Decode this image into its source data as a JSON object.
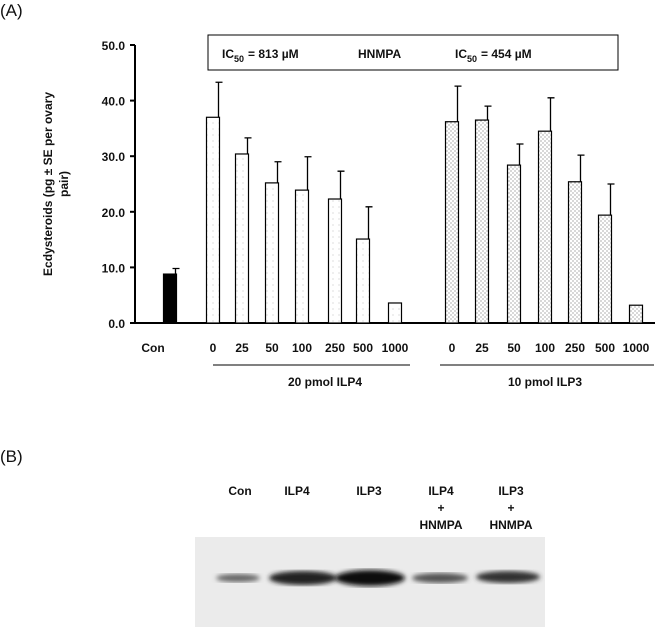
{
  "panel_labels": [
    "(A)",
    "(B)"
  ],
  "chart_data": {
    "type": "bar",
    "y_label": "Ecdysteroids (pg ± SE per ovary pair)",
    "categories": [
      "Con",
      "0",
      "25",
      "50",
      "100",
      "250",
      "500",
      "1000",
      "0",
      "25",
      "50",
      "100",
      "250",
      "500",
      "1000"
    ],
    "values": [
      8.8,
      37.0,
      30.4,
      25.2,
      23.9,
      22.3,
      15.1,
      3.6,
      36.2,
      36.5,
      28.4,
      34.5,
      25.4,
      19.4,
      3.2
    ],
    "errors": [
      1.0,
      6.3,
      2.9,
      3.8,
      6.0,
      5.0,
      5.8,
      null,
      6.4,
      2.5,
      3.8,
      6.0,
      4.8,
      5.6,
      null
    ],
    "group_labels": [
      "20 pmol ILP4",
      "10 pmol ILP3"
    ],
    "ylim": [
      0,
      50
    ],
    "yticks": [
      {
        "value": 0,
        "label": "0.0"
      },
      {
        "value": 10,
        "label": "10.0"
      },
      {
        "value": 20,
        "label": "20.0"
      },
      {
        "value": 30,
        "label": "30.0"
      },
      {
        "value": 40,
        "label": "40.0"
      },
      {
        "value": 50,
        "label": "50.0"
      }
    ],
    "annotations": [
      {
        "base": "IC",
        "sub": "50",
        "rest": "= 813 µM"
      },
      {
        "text": "HNMPA"
      },
      {
        "base": "IC",
        "sub": "50",
        "rest": "= 454 µM"
      }
    ],
    "color": "#000000"
  },
  "blot": {
    "lanes": [
      [
        "Con"
      ],
      [
        "ILP4"
      ],
      [
        "ILP3"
      ],
      [
        "ILP4",
        "+",
        "HNMPA"
      ],
      [
        "ILP3",
        "+",
        "HNMPA"
      ]
    ]
  }
}
